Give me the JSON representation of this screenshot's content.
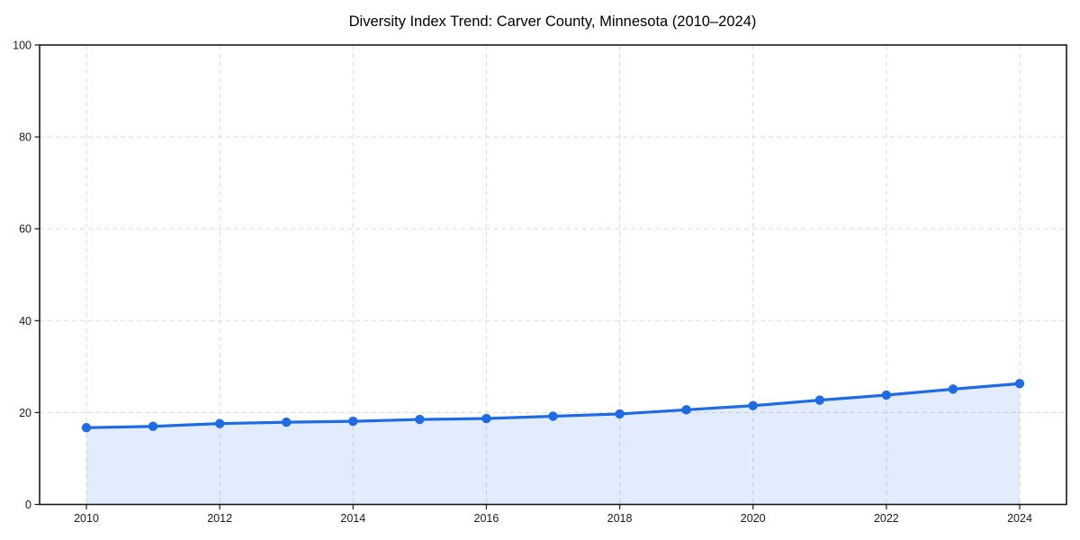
{
  "chart_data": {
    "type": "area",
    "title": "Diversity Index Trend: Carver County, Minnesota (2010–2024)",
    "x": [
      2010,
      2011,
      2012,
      2013,
      2014,
      2015,
      2016,
      2017,
      2018,
      2019,
      2020,
      2021,
      2022,
      2023,
      2024
    ],
    "values": [
      16.7,
      17.0,
      17.6,
      17.9,
      18.1,
      18.5,
      18.7,
      19.2,
      19.7,
      20.6,
      21.5,
      22.7,
      23.8,
      25.1,
      26.3
    ],
    "xlabel": "",
    "ylabel": "",
    "xlim": [
      2009.3,
      2024.7
    ],
    "ylim": [
      0,
      100
    ],
    "xticks": [
      2010,
      2012,
      2014,
      2016,
      2018,
      2020,
      2022,
      2024
    ],
    "yticks": [
      0,
      20,
      40,
      60,
      80,
      100
    ],
    "grid": true,
    "grid_style": "dashed",
    "legend_position": "none",
    "marker": "circle",
    "colors": {
      "line": "#1f6be4",
      "marker": "#1f6be4",
      "fill": "rgba(31, 107, 228, 0.13)",
      "grid": "#d9d9d9",
      "spine": "#1a1a1a",
      "text": "#1a1a1a",
      "background": "#ffffff"
    }
  }
}
